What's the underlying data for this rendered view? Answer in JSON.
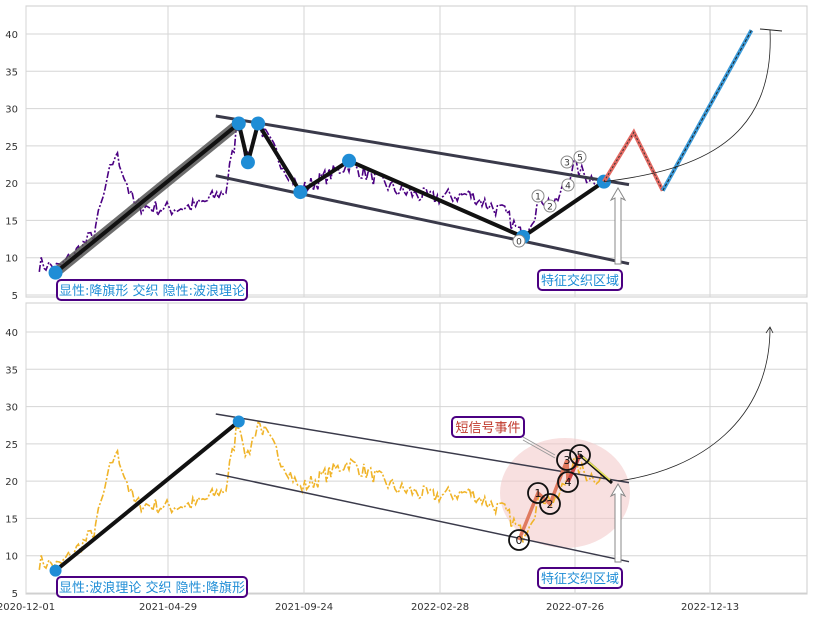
{
  "chart_data": [
    {
      "type": "line",
      "panel": "top",
      "ylim": [
        5,
        43
      ],
      "yticks": [
        5,
        10,
        15,
        20,
        25,
        30,
        35,
        40
      ],
      "grid": true,
      "price_color": "#4b0082",
      "badge": "显性:降旗形 交织 隐性:波浪理论",
      "badge_color": "#1f8dd6",
      "feature_label": "特征交织区域",
      "wave_points": [
        {
          "date": "2021-01-01",
          "value": 8
        },
        {
          "date": "2021-07-15",
          "value": 28
        },
        {
          "date": "2021-07-25",
          "value": 22.8
        },
        {
          "date": "2021-08-05",
          "value": 28
        },
        {
          "date": "2021-09-20",
          "value": 18.8
        },
        {
          "date": "2021-11-15",
          "value": 23
        },
        {
          "date": "2022-05-30",
          "value": 12.8
        },
        {
          "date": "2022-08-25",
          "value": 20.2
        }
      ],
      "wave_labels": [
        "0",
        "1",
        "2",
        "3",
        "4",
        "5"
      ],
      "projection": [
        {
          "date": "2022-08-25",
          "value": 20.2
        },
        {
          "date": "2022-09-25",
          "value": 26.8
        },
        {
          "date": "2022-10-25",
          "value": 19
        },
        {
          "date": "2023-01-25",
          "value": 40.5
        }
      ]
    },
    {
      "type": "line",
      "panel": "bottom",
      "ylim": [
        5,
        43
      ],
      "yticks": [
        5,
        10,
        15,
        20,
        25,
        30,
        35,
        40
      ],
      "grid": true,
      "price_color": "#f0b429",
      "badge": "显性:波浪理论 交织 隐性:降旗形",
      "badge_color": "#1f8dd6",
      "feature_label": "特征交织区域",
      "event_label": "短信号事件",
      "event_color": "#c0392b",
      "wave_labels": [
        "0",
        "1",
        "2",
        "3",
        "4",
        "5"
      ],
      "xticks": [
        "2020-12-01",
        "2021-04-29",
        "2021-09-24",
        "2022-02-28",
        "2022-07-26",
        "2022-12-13"
      ]
    }
  ]
}
